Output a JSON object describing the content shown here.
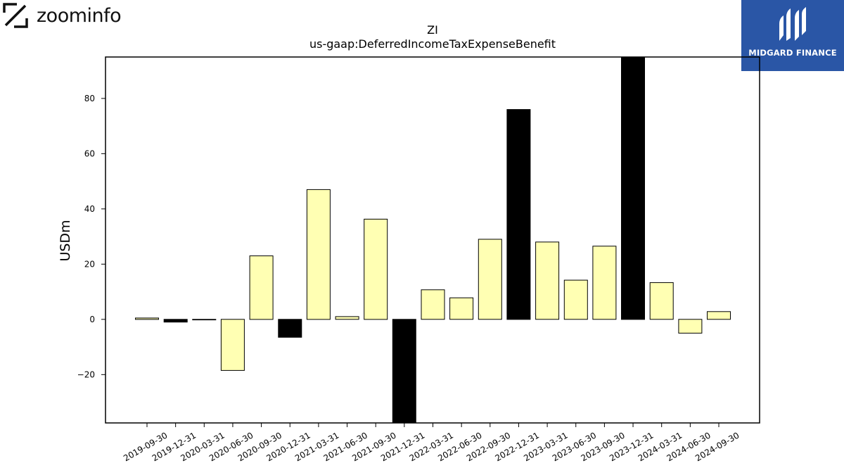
{
  "branding": {
    "left_logo_text": "zoominfo",
    "right_logo_text": "MIDGARD FINANCE",
    "right_logo_bg": "#2a56a6"
  },
  "chart_data": {
    "type": "bar",
    "title": "ZI",
    "subtitle": "us-gaap:DeferredIncomeTaxExpenseBenefit",
    "xlabel": "",
    "ylabel": "USDm",
    "ylim": [
      -37.5,
      95
    ],
    "yticks": [
      -20,
      0,
      20,
      40,
      60,
      80
    ],
    "grid": false,
    "colors": {
      "normal": "#ffffb3",
      "highlight": "#000000",
      "edge": "#000000"
    },
    "categories": [
      "2019-09-30",
      "2019-12-31",
      "2020-03-31",
      "2020-06-30",
      "2020-09-30",
      "2020-12-31",
      "2021-03-31",
      "2021-06-30",
      "2021-09-30",
      "2021-12-31",
      "2022-03-31",
      "2022-06-30",
      "2022-09-30",
      "2022-12-31",
      "2023-03-31",
      "2023-06-30",
      "2023-09-30",
      "2023-12-31",
      "2024-03-31",
      "2024-06-30",
      "2024-09-30"
    ],
    "values": [
      0.5,
      -1.0,
      -0.2,
      -18.5,
      23.0,
      -6.5,
      47.0,
      1.0,
      36.3,
      -38.0,
      10.7,
      7.8,
      29.0,
      76.0,
      28.0,
      14.2,
      26.5,
      97.0,
      13.3,
      -5.0,
      2.8
    ],
    "highlight": [
      false,
      true,
      false,
      false,
      false,
      true,
      false,
      false,
      false,
      true,
      false,
      false,
      false,
      true,
      false,
      false,
      false,
      true,
      false,
      false,
      false
    ]
  }
}
